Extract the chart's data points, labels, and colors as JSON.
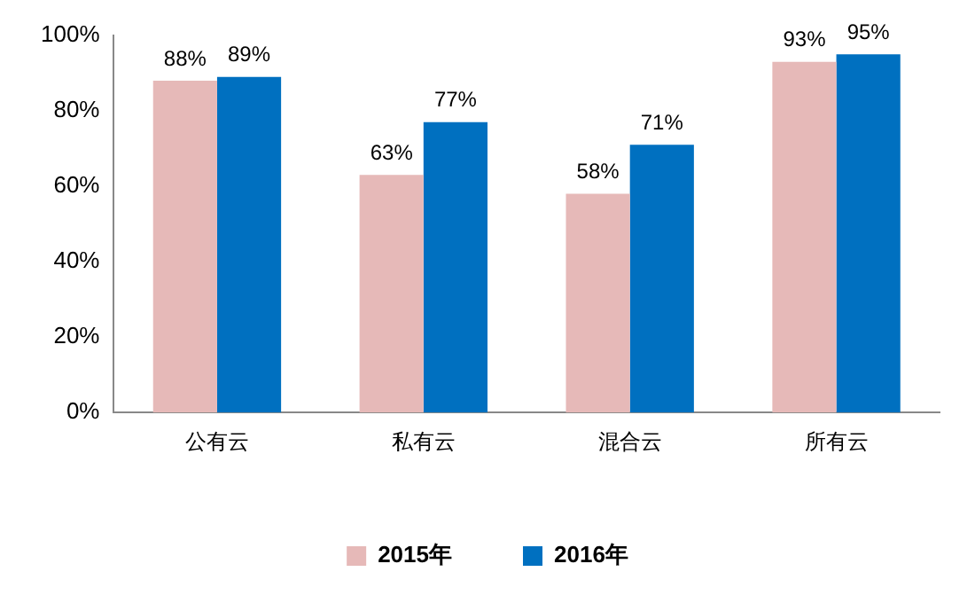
{
  "chart_data": {
    "type": "bar",
    "categories": [
      "公有云",
      "私有云",
      "混合云",
      "所有云"
    ],
    "series": [
      {
        "name": "2015年",
        "color": "#e6b9b8",
        "values": [
          88,
          63,
          58,
          93
        ],
        "value_labels": [
          "88%",
          "63%",
          "58%",
          "93%"
        ]
      },
      {
        "name": "2016年",
        "color": "#0070c0",
        "values": [
          89,
          77,
          71,
          95
        ],
        "value_labels": [
          "89%",
          "77%",
          "71%",
          "95%"
        ]
      }
    ],
    "ylim": [
      0,
      100
    ],
    "yticks": [
      {
        "value": 0,
        "label": "0%"
      },
      {
        "value": 20,
        "label": "20%"
      },
      {
        "value": 40,
        "label": "40%"
      },
      {
        "value": 60,
        "label": "60%"
      },
      {
        "value": 80,
        "label": "80%"
      },
      {
        "value": 100,
        "label": "100%"
      }
    ],
    "grid": false,
    "legend": "bottom"
  }
}
